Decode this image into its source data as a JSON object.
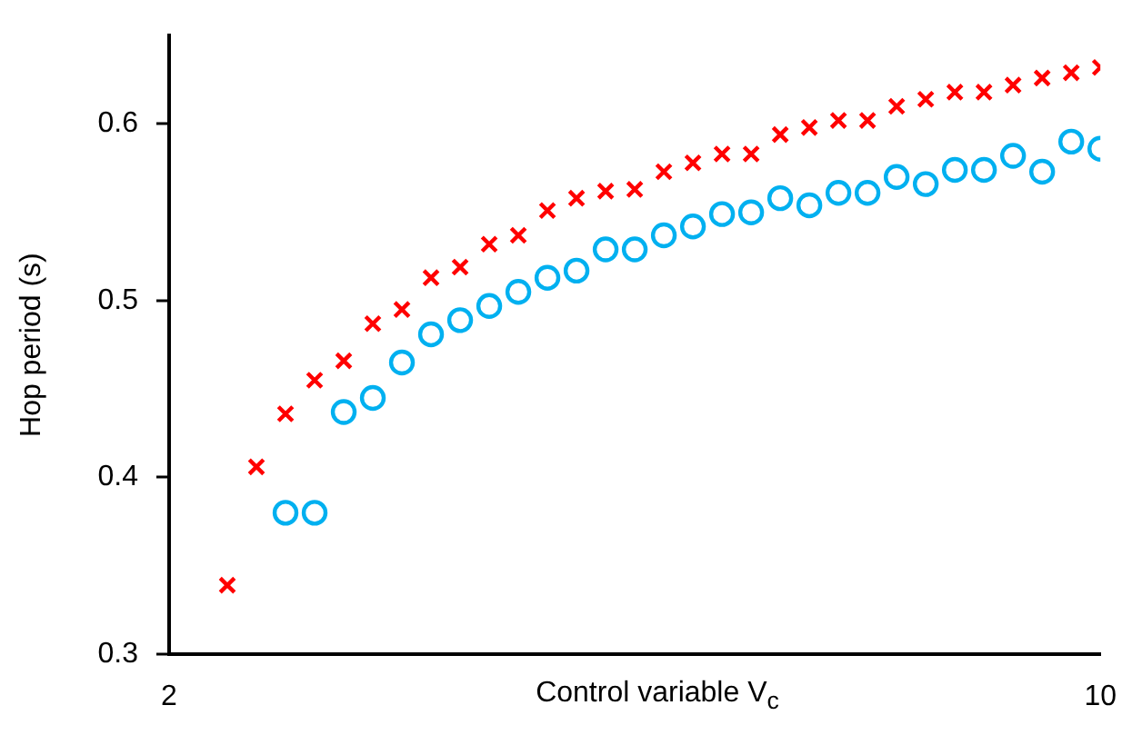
{
  "chart_data": {
    "type": "scatter",
    "xlabel": "Control variable V$_{c}$",
    "ylabel": "Hop period (s)",
    "xlim": [
      2,
      10
    ],
    "xticks": [
      2,
      10
    ],
    "ylim": [
      0.3,
      0.65
    ],
    "yticks": [
      0.3,
      0.4,
      0.5,
      0.6
    ],
    "series": [
      {
        "color": "#ff0000",
        "marker": "cross",
        "x": [
          2.5,
          2.75,
          3,
          3.25,
          3.5,
          3.75,
          4,
          4.25,
          4.5,
          4.75,
          5,
          5.25,
          5.5,
          5.75,
          6,
          6.25,
          6.5,
          6.75,
          7,
          7.25,
          7.5,
          7.75,
          8,
          8.25,
          8.5,
          8.75,
          9,
          9.25,
          9.5,
          9.75,
          10
        ],
        "values": [
          0.339,
          0.406,
          0.436,
          0.455,
          0.466,
          0.487,
          0.495,
          0.513,
          0.519,
          0.532,
          0.537,
          0.551,
          0.558,
          0.562,
          0.563,
          0.573,
          0.578,
          0.583,
          0.583,
          0.594,
          0.598,
          0.602,
          0.602,
          0.61,
          0.614,
          0.618,
          0.618,
          0.622,
          0.626,
          0.629,
          0.632
        ]
      },
      {
        "color": "#00b0f0",
        "marker": "circle",
        "x": [
          3,
          3.25,
          3.5,
          3.75,
          4,
          4.25,
          4.5,
          4.75,
          5,
          5.25,
          5.5,
          5.75,
          6,
          6.25,
          6.5,
          6.75,
          7,
          7.25,
          7.5,
          7.75,
          8,
          8.25,
          8.5,
          8.75,
          9,
          9.25,
          9.5,
          9.75,
          10
        ],
        "values": [
          0.38,
          0.38,
          0.437,
          0.445,
          0.465,
          0.481,
          0.489,
          0.497,
          0.505,
          0.513,
          0.517,
          0.529,
          0.529,
          0.537,
          0.542,
          0.549,
          0.55,
          0.558,
          0.554,
          0.561,
          0.561,
          0.57,
          0.566,
          0.574,
          0.574,
          0.582,
          0.573,
          0.59,
          0.586
        ]
      }
    ]
  }
}
